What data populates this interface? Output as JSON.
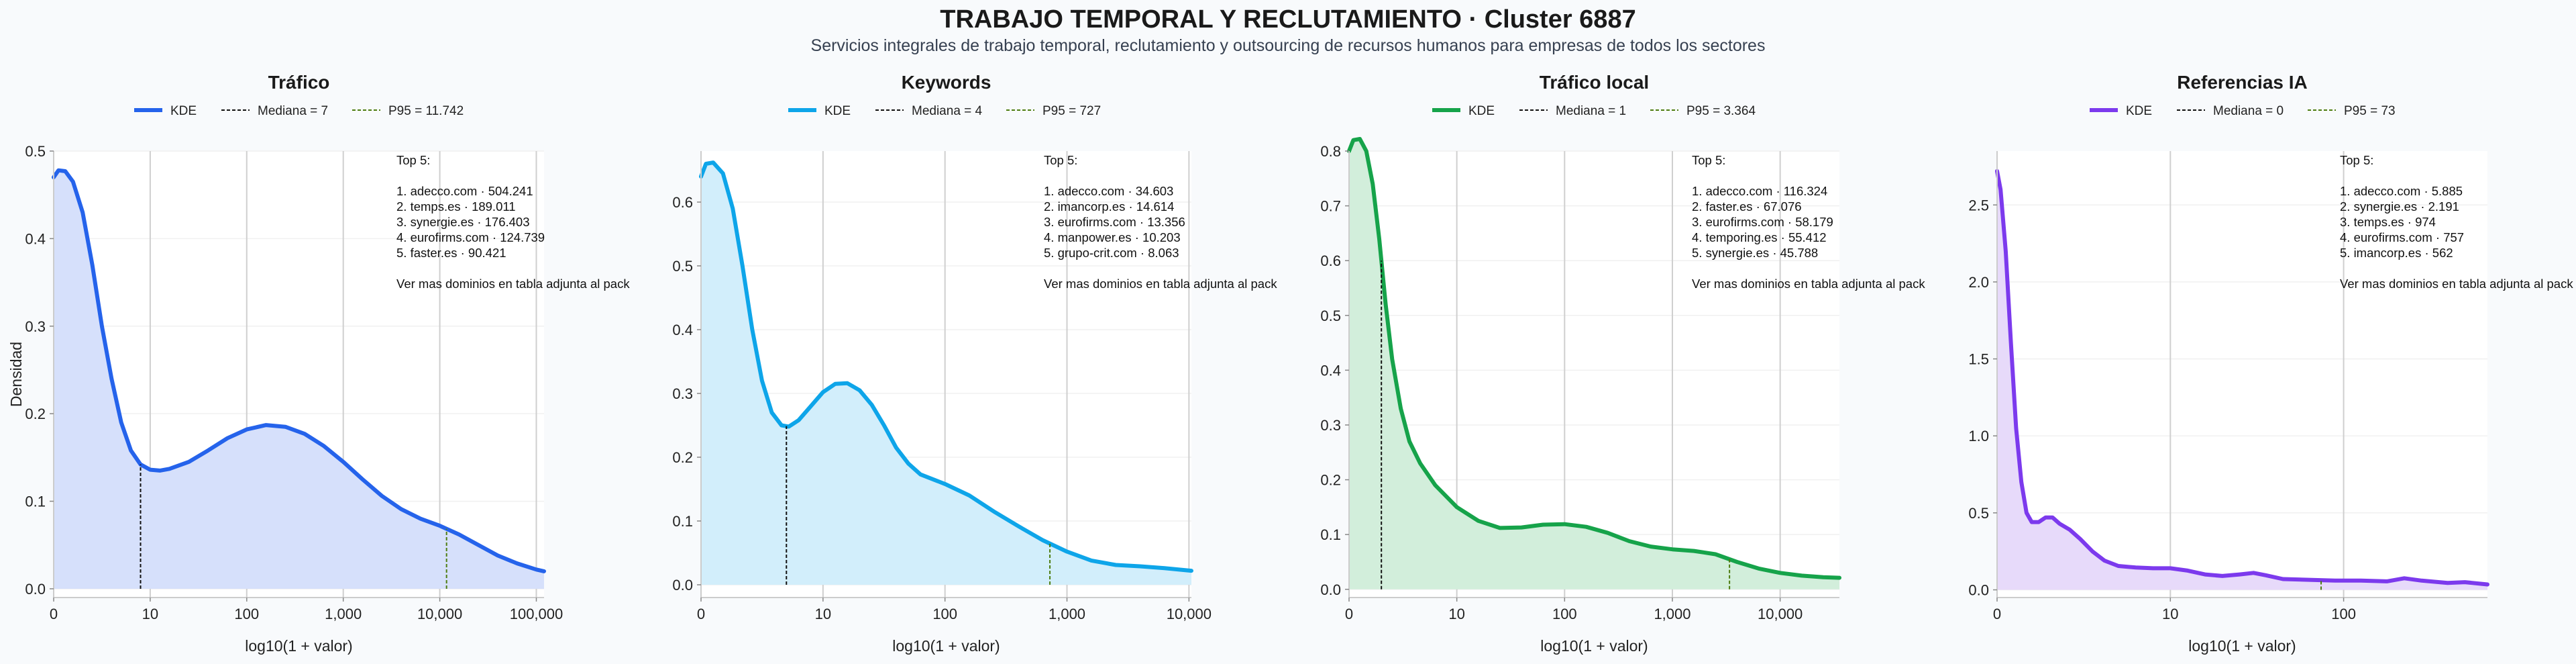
{
  "header": {
    "title": "TRABAJO TEMPORAL Y RECLUTAMIENTO · Cluster 6887",
    "subtitle": "Servicios integrales de trabajo temporal, reclutamiento y outsourcing de recursos humanos para empresas de todos los sectores"
  },
  "colors": {
    "background": "#f8fafc",
    "plot_background": "#ffffff",
    "median_line": "#111111",
    "p95_line": "#4d7c0f"
  },
  "chart_data": [
    {
      "type": "area",
      "title": "Tráfico",
      "xlabel": "log10(1 + valor)",
      "ylabel": "Densidad",
      "x_scale": "log10(1+x)",
      "xlim": [
        0,
        5.08
      ],
      "ylim": [
        -0.01,
        0.5
      ],
      "yticks": [
        0.0,
        0.1,
        0.2,
        0.3,
        0.4,
        0.5
      ],
      "ytick_labels": [
        "0.0",
        "0.1",
        "0.2",
        "0.3",
        "0.4",
        "0.5"
      ],
      "xticks": [
        0,
        1,
        2,
        3,
        4,
        5
      ],
      "xtick_labels": [
        "0",
        "10",
        "100",
        "1,000",
        "10,000",
        "100,000"
      ],
      "color": "#2563eb",
      "fill": "#d6e0fb",
      "legend": [
        "KDE",
        "Mediana = 7",
        "P95 = 11.742"
      ],
      "median_x": 0.9,
      "p95_x": 4.07,
      "kde": [
        [
          0,
          0.47
        ],
        [
          0.05,
          0.478
        ],
        [
          0.12,
          0.477
        ],
        [
          0.2,
          0.465
        ],
        [
          0.3,
          0.43
        ],
        [
          0.4,
          0.37
        ],
        [
          0.5,
          0.3
        ],
        [
          0.6,
          0.24
        ],
        [
          0.7,
          0.19
        ],
        [
          0.8,
          0.158
        ],
        [
          0.9,
          0.142
        ],
        [
          1.0,
          0.136
        ],
        [
          1.1,
          0.135
        ],
        [
          1.2,
          0.137
        ],
        [
          1.4,
          0.145
        ],
        [
          1.6,
          0.158
        ],
        [
          1.8,
          0.172
        ],
        [
          2.0,
          0.182
        ],
        [
          2.2,
          0.187
        ],
        [
          2.4,
          0.185
        ],
        [
          2.6,
          0.177
        ],
        [
          2.8,
          0.163
        ],
        [
          3.0,
          0.145
        ],
        [
          3.2,
          0.125
        ],
        [
          3.4,
          0.106
        ],
        [
          3.6,
          0.091
        ],
        [
          3.8,
          0.08
        ],
        [
          4.0,
          0.072
        ],
        [
          4.2,
          0.062
        ],
        [
          4.4,
          0.05
        ],
        [
          4.6,
          0.038
        ],
        [
          4.8,
          0.029
        ],
        [
          5.0,
          0.022
        ],
        [
          5.08,
          0.02
        ]
      ],
      "top5_title": "Top 5:",
      "top5": [
        "1. adecco.com · 504.241",
        "2. temps.es · 189.011",
        "3. synergie.es · 176.403",
        "4. eurofirms.com · 124.739",
        "5. faster.es · 90.421"
      ],
      "note": "Ver mas dominios en tabla adjunta al pack"
    },
    {
      "type": "area",
      "title": "Keywords",
      "xlabel": "log10(1 + valor)",
      "ylabel": "",
      "x_scale": "log10(1+x)",
      "xlim": [
        0,
        4.02
      ],
      "ylim": [
        -0.02,
        0.68
      ],
      "yticks": [
        0.0,
        0.1,
        0.2,
        0.3,
        0.4,
        0.5,
        0.6
      ],
      "ytick_labels": [
        "0.0",
        "0.1",
        "0.2",
        "0.3",
        "0.4",
        "0.5",
        "0.6"
      ],
      "xticks": [
        0,
        1,
        2,
        3,
        4
      ],
      "xtick_labels": [
        "0",
        "10",
        "100",
        "1,000",
        "10,000"
      ],
      "color": "#0ea5e9",
      "fill": "#d2eefb",
      "legend": [
        "KDE",
        "Mediana = 4",
        "P95 = 727"
      ],
      "median_x": 0.7,
      "p95_x": 2.86,
      "kde": [
        [
          0,
          0.64
        ],
        [
          0.04,
          0.66
        ],
        [
          0.1,
          0.662
        ],
        [
          0.18,
          0.645
        ],
        [
          0.26,
          0.59
        ],
        [
          0.34,
          0.5
        ],
        [
          0.42,
          0.4
        ],
        [
          0.5,
          0.32
        ],
        [
          0.58,
          0.27
        ],
        [
          0.66,
          0.25
        ],
        [
          0.72,
          0.248
        ],
        [
          0.8,
          0.258
        ],
        [
          0.9,
          0.28
        ],
        [
          1.0,
          0.302
        ],
        [
          1.1,
          0.315
        ],
        [
          1.2,
          0.316
        ],
        [
          1.3,
          0.305
        ],
        [
          1.4,
          0.282
        ],
        [
          1.5,
          0.25
        ],
        [
          1.6,
          0.215
        ],
        [
          1.7,
          0.19
        ],
        [
          1.8,
          0.173
        ],
        [
          2.0,
          0.158
        ],
        [
          2.2,
          0.14
        ],
        [
          2.4,
          0.115
        ],
        [
          2.6,
          0.092
        ],
        [
          2.8,
          0.07
        ],
        [
          3.0,
          0.052
        ],
        [
          3.2,
          0.038
        ],
        [
          3.4,
          0.031
        ],
        [
          3.6,
          0.029
        ],
        [
          3.8,
          0.026
        ],
        [
          4.02,
          0.022
        ]
      ],
      "top5_title": "Top 5:",
      "top5": [
        "1. adecco.com · 34.603",
        "2. imancorp.es · 14.614",
        "3. eurofirms.com · 13.356",
        "4. manpower.es · 10.203",
        "5. grupo-crit.com · 8.063"
      ],
      "note": "Ver mas dominios en tabla adjunta al pack"
    },
    {
      "type": "area",
      "title": "Tráfico local",
      "xlabel": "log10(1 + valor)",
      "ylabel": "",
      "x_scale": "log10(1+x)",
      "xlim": [
        0,
        4.55
      ],
      "ylim": [
        -0.015,
        0.8
      ],
      "yticks": [
        0.0,
        0.1,
        0.2,
        0.3,
        0.4,
        0.5,
        0.6,
        0.7,
        0.8
      ],
      "ytick_labels": [
        "0.0",
        "0.1",
        "0.2",
        "0.3",
        "0.4",
        "0.5",
        "0.6",
        "0.7",
        "0.8"
      ],
      "xticks": [
        0,
        1,
        2,
        3,
        4
      ],
      "xtick_labels": [
        "0",
        "10",
        "100",
        "1,000",
        "10,000"
      ],
      "color": "#16a34a",
      "fill": "#d2eedb",
      "legend": [
        "KDE",
        "Mediana = 1",
        "P95 = 3.364"
      ],
      "median_x": 0.3,
      "p95_x": 3.53,
      "kde": [
        [
          0,
          0.8
        ],
        [
          0.04,
          0.82
        ],
        [
          0.1,
          0.822
        ],
        [
          0.16,
          0.8
        ],
        [
          0.22,
          0.74
        ],
        [
          0.28,
          0.64
        ],
        [
          0.34,
          0.52
        ],
        [
          0.4,
          0.42
        ],
        [
          0.48,
          0.33
        ],
        [
          0.56,
          0.27
        ],
        [
          0.66,
          0.23
        ],
        [
          0.8,
          0.19
        ],
        [
          1.0,
          0.15
        ],
        [
          1.2,
          0.125
        ],
        [
          1.4,
          0.112
        ],
        [
          1.6,
          0.113
        ],
        [
          1.8,
          0.118
        ],
        [
          2.0,
          0.119
        ],
        [
          2.2,
          0.114
        ],
        [
          2.4,
          0.103
        ],
        [
          2.6,
          0.088
        ],
        [
          2.8,
          0.078
        ],
        [
          3.0,
          0.073
        ],
        [
          3.2,
          0.07
        ],
        [
          3.4,
          0.064
        ],
        [
          3.6,
          0.05
        ],
        [
          3.8,
          0.038
        ],
        [
          4.0,
          0.03
        ],
        [
          4.2,
          0.025
        ],
        [
          4.4,
          0.022
        ],
        [
          4.55,
          0.021
        ]
      ],
      "top5_title": "Top 5:",
      "top5": [
        "1. adecco.com · 116.324",
        "2. faster.es · 67.076",
        "3. eurofirms.com · 58.179",
        "4. temporing.es · 55.412",
        "5. synergie.es · 45.788"
      ],
      "note": "Ver mas dominios en tabla adjunta al pack"
    },
    {
      "type": "area",
      "title": "Referencias IA",
      "xlabel": "log10(1 + valor)",
      "ylabel": "",
      "x_scale": "log10(1+x)",
      "xlim": [
        0,
        2.83
      ],
      "ylim": [
        -0.05,
        2.85
      ],
      "yticks": [
        0.0,
        0.5,
        1.0,
        1.5,
        2.0,
        2.5
      ],
      "ytick_labels": [
        "0.0",
        "0.5",
        "1.0",
        "1.5",
        "2.0",
        "2.5"
      ],
      "xticks": [
        0,
        1,
        2
      ],
      "xtick_labels": [
        "0",
        "10",
        "100"
      ],
      "color": "#7c3aed",
      "fill": "#e7dafa",
      "legend": [
        "KDE",
        "Mediana = 0",
        "P95 = 73"
      ],
      "median_x": 0.0,
      "p95_x": 1.87,
      "kde": [
        [
          0,
          2.72
        ],
        [
          0.02,
          2.6
        ],
        [
          0.05,
          2.2
        ],
        [
          0.08,
          1.6
        ],
        [
          0.11,
          1.05
        ],
        [
          0.14,
          0.7
        ],
        [
          0.17,
          0.5
        ],
        [
          0.2,
          0.44
        ],
        [
          0.24,
          0.44
        ],
        [
          0.28,
          0.47
        ],
        [
          0.32,
          0.47
        ],
        [
          0.36,
          0.43
        ],
        [
          0.42,
          0.39
        ],
        [
          0.48,
          0.33
        ],
        [
          0.55,
          0.25
        ],
        [
          0.62,
          0.19
        ],
        [
          0.7,
          0.155
        ],
        [
          0.8,
          0.145
        ],
        [
          0.9,
          0.14
        ],
        [
          1.0,
          0.14
        ],
        [
          1.1,
          0.125
        ],
        [
          1.2,
          0.1
        ],
        [
          1.3,
          0.09
        ],
        [
          1.4,
          0.1
        ],
        [
          1.48,
          0.11
        ],
        [
          1.55,
          0.095
        ],
        [
          1.65,
          0.07
        ],
        [
          1.8,
          0.065
        ],
        [
          1.95,
          0.06
        ],
        [
          2.1,
          0.06
        ],
        [
          2.25,
          0.055
        ],
        [
          2.35,
          0.075
        ],
        [
          2.45,
          0.06
        ],
        [
          2.6,
          0.045
        ],
        [
          2.7,
          0.05
        ],
        [
          2.83,
          0.035
        ]
      ],
      "top5_title": "Top 5:",
      "top5": [
        "1. adecco.com · 5.885",
        "2. synergie.es · 2.191",
        "3. temps.es · 974",
        "4. eurofirms.com · 757",
        "5. imancorp.es · 562"
      ],
      "note": "Ver mas dominios en tabla adjunta al pack"
    }
  ]
}
